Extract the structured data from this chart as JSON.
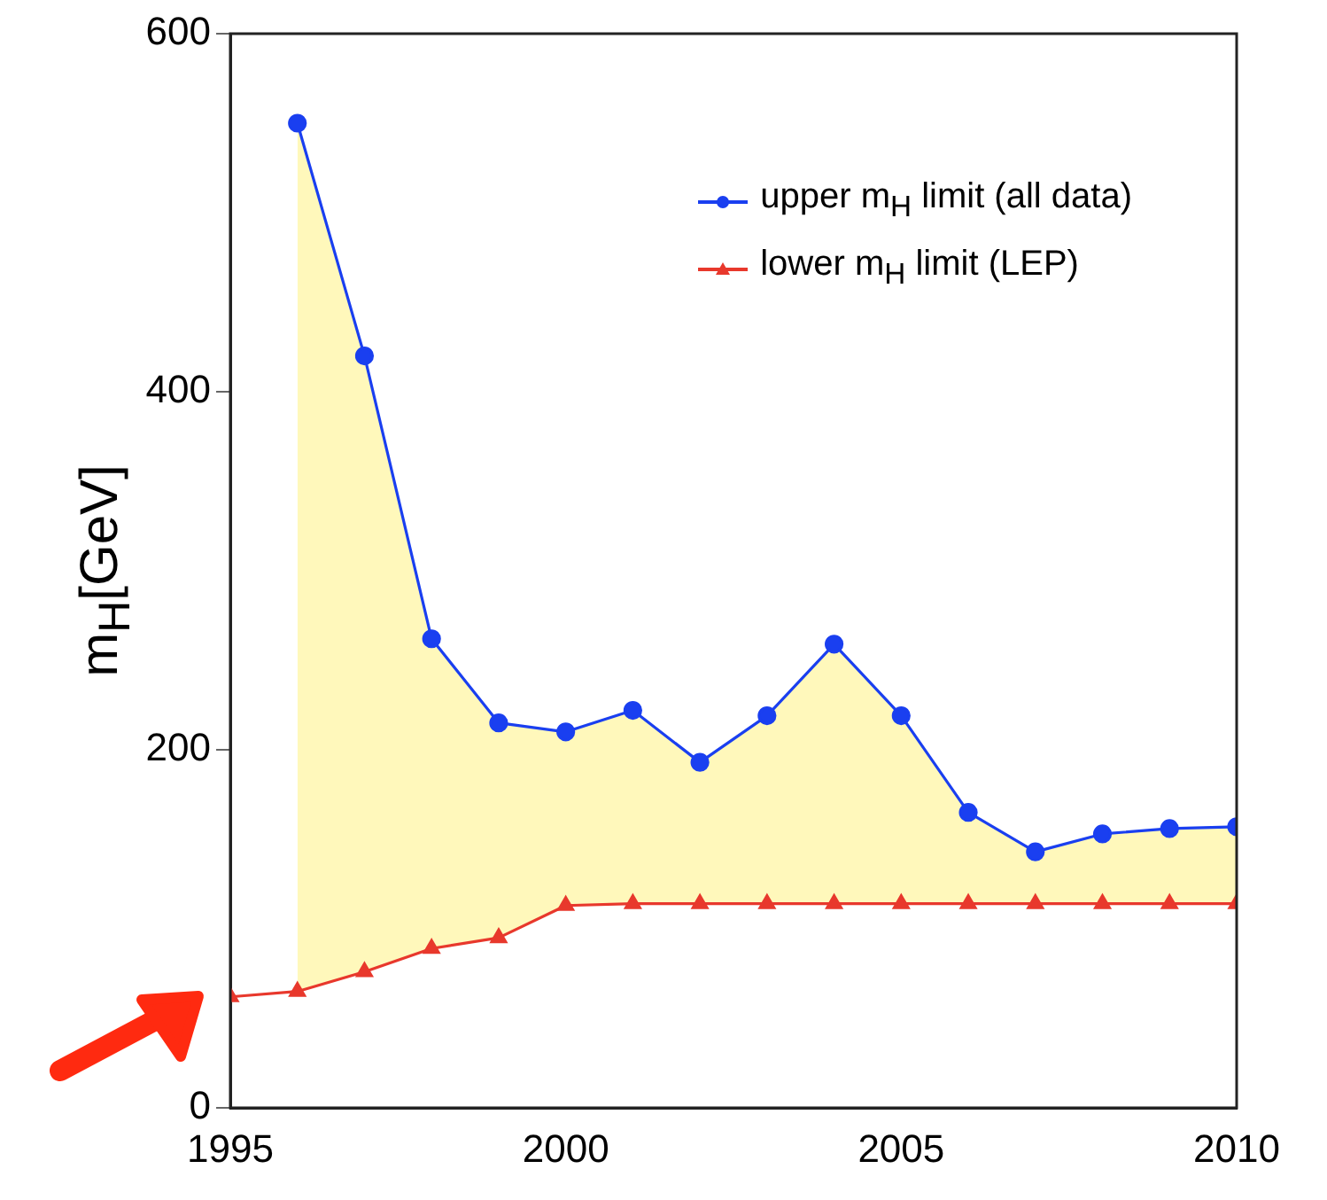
{
  "chart_data": {
    "type": "line",
    "ylabel": "m$_{H}$[GeV]",
    "xlim": [
      1995,
      2010
    ],
    "xticks": [
      1995,
      2000,
      2005,
      2010
    ],
    "ylim": [
      0,
      600
    ],
    "yticks": [
      0,
      200,
      400,
      600
    ],
    "grid": false,
    "legend": "top right",
    "series": [
      {
        "name": "upper m$_{H}$ limit (all data)",
        "color": "#1a3ff0",
        "marker": "circle",
        "x": [
          1996,
          1997,
          1998,
          1999,
          2000,
          2001,
          2002,
          2003,
          2004,
          2005,
          2006,
          2007,
          2008,
          2009,
          2010
        ],
        "values": [
          550,
          420,
          262,
          215,
          210,
          222,
          193,
          219,
          259,
          219,
          165,
          143,
          153,
          156,
          157
        ],
        "lower": [
          65,
          76,
          89,
          95,
          113,
          114,
          114,
          114,
          114,
          114,
          114,
          114,
          114,
          114,
          114
        ],
        "upper": [
          550,
          420,
          262,
          215,
          210,
          222,
          193,
          219,
          259,
          219,
          165,
          143,
          153,
          156,
          157
        ]
      },
      {
        "name": "lower m$_{H}$ limit (LEP)",
        "color": "#e8382c",
        "marker": "triangle",
        "x": [
          1995,
          1996,
          1997,
          1998,
          1999,
          2000,
          2001,
          2002,
          2003,
          2004,
          2005,
          2006,
          2007,
          2008,
          2009,
          2010
        ],
        "values": [
          62,
          65,
          76,
          89,
          95,
          113,
          114,
          114,
          114,
          114,
          114,
          114,
          114,
          114,
          114,
          114
        ]
      }
    ]
  }
}
